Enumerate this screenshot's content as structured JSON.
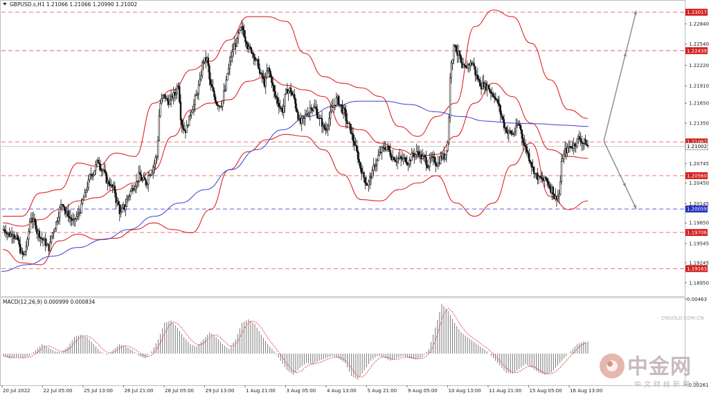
{
  "header": {
    "symbol_text": "GBPUSD.s,H1  1.21066 1.21066 1.20990 1.21002",
    "macd_text": "MACD(12,26,9) 0.000999 0.000834"
  },
  "watermark": {
    "cn_text": "中金网",
    "sub_text": "中文财经新媒体",
    "url_text": "CNGOLD.COM.CN"
  },
  "colors": {
    "candle": "#111111",
    "bollinger": "#e02020",
    "ma": "#3b3bd6",
    "hline_red": "#e06060",
    "hline_blue": "#5b5be0",
    "arrow": "#888888",
    "macd_hist": "#777777",
    "macd_signal": "#e03030",
    "price_marker_red": "#d42020",
    "price_marker_blue": "#2030c0"
  },
  "chart_data": {
    "type": "candlestick",
    "symbol": "GBPUSD.s",
    "timeframe": "H1",
    "ohlc_current": {
      "open": 1.21066,
      "high": 1.21066,
      "low": 1.2099,
      "close": 1.21002
    },
    "ylim": [
      1.1875,
      1.2318
    ],
    "y_ticks": [
      1.2284,
      1.2254,
      1.2222,
      1.2191,
      1.2165,
      1.2135,
      1.2074,
      1.2045,
      1.2014,
      1.1985,
      1.1954,
      1.1925,
      1.1895
    ],
    "y_tick_labels": [
      "1.22840",
      "1.22540",
      "1.22220",
      "1.21910",
      "1.21650",
      "1.21350",
      "1.20745",
      "1.20450",
      "1.20145",
      "1.19850",
      "1.19545",
      "1.19245",
      "1.18950"
    ],
    "x_tick_labels": [
      "20 Jul 2022",
      "22 Jul 05:00",
      "25 Jul 13:00",
      "26 Jul 21:00",
      "28 Jul 05:00",
      "29 Jul 13:00",
      "1 Aug 21:00",
      "3 Aug 05:00",
      "4 Aug 13:00",
      "5 Aug 21:00",
      "9 Aug 05:00",
      "10 Aug 13:00",
      "11 Aug 21:00",
      "15 Aug 05:00",
      "16 Aug 13:00"
    ],
    "levels": [
      {
        "value": 1.23017,
        "label": "1.23017",
        "color": "red"
      },
      {
        "value": 1.22439,
        "label": "1.22439",
        "color": "red"
      },
      {
        "value": 1.21067,
        "label": "1.21067",
        "color": "red"
      },
      {
        "value": 1.21002,
        "label": "1.21002",
        "color": "current"
      },
      {
        "value": 1.2056,
        "label": "1.20560",
        "color": "red"
      },
      {
        "value": 1.20059,
        "label": "1.20059",
        "color": "blue"
      },
      {
        "value": 1.19706,
        "label": "1.19706",
        "color": "red"
      },
      {
        "value": 1.19163,
        "label": "1.19163",
        "color": "red"
      }
    ],
    "close_path": [
      1.1975,
      1.1968,
      1.1972,
      1.196,
      1.1945,
      1.1935,
      1.1955,
      1.1995,
      1.1985,
      1.197,
      1.1962,
      1.1955,
      1.1948,
      1.197,
      1.1985,
      1.2005,
      1.2015,
      1.1998,
      1.1992,
      1.1985,
      1.1995,
      1.2008,
      1.2025,
      1.2045,
      1.206,
      1.207,
      1.2078,
      1.2065,
      1.205,
      1.2045,
      1.2035,
      1.2015,
      1.1998,
      1.2008,
      1.2025,
      1.2035,
      1.2045,
      1.2055,
      1.2048,
      1.2045,
      1.2062,
      1.207,
      1.2085,
      1.2165,
      1.2175,
      1.2168,
      1.217,
      1.2178,
      1.2195,
      1.2135,
      1.2125,
      1.214,
      1.216,
      1.2175,
      1.2195,
      1.223,
      1.223,
      1.219,
      1.2175,
      1.2165,
      1.2165,
      1.2185,
      1.2215,
      1.224,
      1.2255,
      1.227,
      1.2275,
      1.226,
      1.2245,
      1.224,
      1.2225,
      1.2205,
      1.2195,
      1.2215,
      1.22,
      1.2175,
      1.2165,
      1.2155,
      1.218,
      1.2185,
      1.2175,
      1.2155,
      1.2135,
      1.214,
      1.2152,
      1.2162,
      1.2158,
      1.2145,
      1.2135,
      1.2125,
      1.2142,
      1.2158,
      1.217,
      1.2163,
      1.2152,
      1.2135,
      1.2125,
      1.2105,
      1.2085,
      1.2065,
      1.205,
      1.2045,
      1.2058,
      1.2075,
      1.2088,
      1.2095,
      1.21,
      1.209,
      1.2085,
      1.2082,
      1.208,
      1.208,
      1.2078,
      1.2085,
      1.2088,
      1.2092,
      1.2082,
      1.2078,
      1.2076,
      1.2078,
      1.2075,
      1.2082,
      1.2085,
      1.2105,
      1.223,
      1.2255,
      1.2238,
      1.2215,
      1.2215,
      1.2225,
      1.2225,
      1.2205,
      1.2195,
      1.2195,
      1.219,
      1.2183,
      1.2178,
      1.2165,
      1.2145,
      1.2128,
      1.212,
      1.2118,
      1.2125,
      1.2132,
      1.211,
      1.2095,
      1.208,
      1.2065,
      1.2055,
      1.205,
      1.2048,
      1.2045,
      1.2036,
      1.2022,
      1.2028,
      1.2085,
      1.2095,
      1.21,
      1.2102,
      1.2108,
      1.2112,
      1.2105,
      1.21002
    ],
    "bollinger": {
      "upper": [
        [
          1.1995,
          1.1995
        ],
        [
          1.203,
          1.2035
        ],
        [
          1.2075,
          1.207
        ],
        [
          1.209,
          1.2085
        ],
        [
          1.2165,
          1.2185
        ],
        [
          1.2215,
          1.2228
        ],
        [
          1.226,
          1.2295
        ],
        [
          1.2295,
          1.2288
        ],
        [
          1.224,
          1.2205
        ],
        [
          1.2195,
          1.2188
        ],
        [
          1.2175,
          1.213
        ],
        [
          1.2115,
          1.2145
        ],
        [
          1.2165,
          1.228
        ],
        [
          1.2305,
          1.2295
        ],
        [
          1.2255,
          1.22
        ],
        [
          1.2155,
          1.2142
        ]
      ],
      "middle": [
        [
          1.1985,
          1.198
        ],
        [
          1.199,
          1.2005
        ],
        [
          1.2018,
          1.2023
        ],
        [
          1.2035,
          1.2045
        ],
        [
          1.2065,
          1.2115
        ],
        [
          1.2155,
          1.2165
        ],
        [
          1.217,
          1.2198
        ],
        [
          1.2205,
          1.2192
        ],
        [
          1.2185,
          1.2175
        ],
        [
          1.213,
          1.2125
        ],
        [
          1.2105,
          1.2095
        ],
        [
          1.2085,
          1.2088
        ],
        [
          1.2115,
          1.2165
        ],
        [
          1.2195,
          1.2175
        ],
        [
          1.2135,
          1.2095
        ],
        [
          1.2085,
          1.2082
        ]
      ],
      "lower": [
        [
          1.1945,
          1.1925
        ],
        [
          1.1922,
          1.1958
        ],
        [
          1.1968,
          1.196
        ],
        [
          1.1962,
          1.1975
        ],
        [
          1.1985,
          1.1975
        ],
        [
          1.197,
          1.2005
        ],
        [
          1.2065,
          1.2092
        ],
        [
          1.211,
          1.2118
        ],
        [
          1.2115,
          1.2095
        ],
        [
          1.2058,
          1.202
        ],
        [
          1.2018,
          1.2035
        ],
        [
          1.2045,
          1.2056
        ],
        [
          1.2015,
          1.1995
        ],
        [
          1.2015,
          1.2072
        ],
        [
          1.2105,
          1.2025
        ],
        [
          1.2005,
          1.2018
        ]
      ]
    },
    "moving_average": [
      1.1912,
      1.1922,
      1.1935,
      1.1948,
      1.196,
      1.1975,
      1.1995,
      1.2015,
      1.2035,
      1.2065,
      1.2095,
      1.2125,
      1.2145,
      1.216,
      1.2168,
      1.2168,
      1.2163,
      1.2152,
      1.2145,
      1.2138,
      1.2135,
      1.2134,
      1.2132,
      1.213
    ],
    "projection_lines": [
      {
        "from": 1.2108,
        "to": 1.2304
      },
      {
        "from": 1.2108,
        "to": 1.2006
      }
    ],
    "macd": {
      "params": "12,26,9",
      "main": 0.000999,
      "signal": 0.000834,
      "ylim": [
        -0.002619,
        0.00463
      ],
      "y_tick_labels": [
        "0.00463",
        "-0.002619"
      ],
      "histogram": [
        -0.0002,
        -0.0004,
        -0.0003,
        -0.0004,
        -0.0002,
        0.0003,
        0.0008,
        0.0005,
        0.0002,
        0.0001,
        0.0006,
        0.0014,
        0.0016,
        0.0014,
        0.0008,
        0.0002,
        -0.0001,
        0.0003,
        0.0008,
        0.0006,
        0.0003,
        -0.0002,
        -0.0004,
        0.0002,
        0.0012,
        0.0026,
        0.0028,
        0.0022,
        0.0014,
        0.0008,
        0.0006,
        0.0012,
        0.0018,
        0.0014,
        0.0008,
        0.0004,
        0.0012,
        0.0026,
        0.0029,
        0.0025,
        0.0016,
        0.0008,
        0.0002,
        -0.0006,
        -0.0014,
        -0.0018,
        -0.0012,
        -0.0008,
        -0.0009,
        -0.0006,
        -0.0004,
        -0.0002,
        -0.0004,
        -0.0008,
        -0.0019,
        -0.0022,
        -0.0014,
        -0.0006,
        -0.0002,
        -0.0003,
        -0.0006,
        -0.0004,
        -0.0002,
        -0.0004,
        -0.0005,
        -0.0003,
        0.0004,
        0.0022,
        0.0042,
        0.0036,
        0.0026,
        0.0018,
        0.0014,
        0.001,
        0.0006,
        0.0002,
        -0.0004,
        -0.001,
        -0.0016,
        -0.0017,
        -0.0013,
        -0.0009,
        -0.0012,
        -0.0016,
        -0.0018,
        -0.0016,
        -0.001,
        -0.0004,
        0.0002,
        0.0008,
        0.001
      ]
    }
  }
}
